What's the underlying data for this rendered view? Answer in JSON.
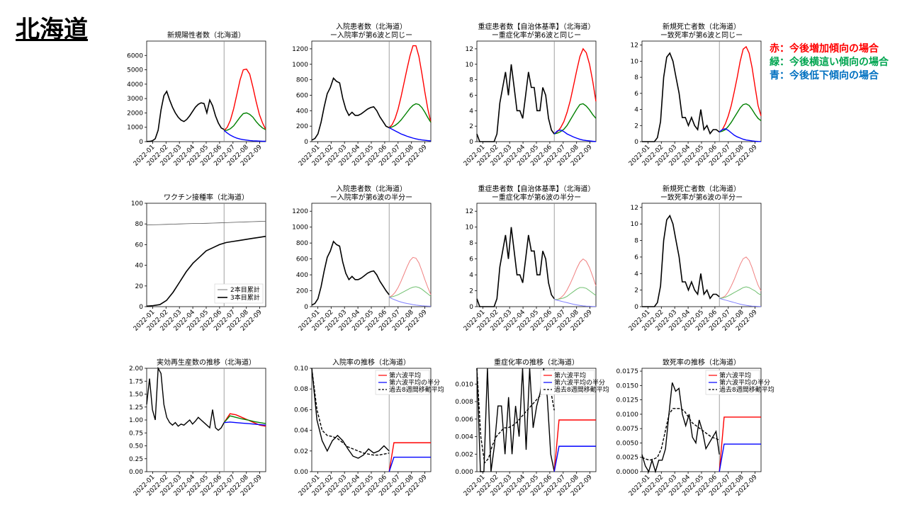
{
  "page_title": "北海道",
  "legend": [
    {
      "text": "赤：今後増加傾向の場合",
      "color": "#ff0000"
    },
    {
      "text": "緑：今後横這い傾向の場合",
      "color": "#00a550"
    },
    {
      "text": "青：今後低下傾向の場合",
      "color": "#0070c0"
    }
  ],
  "colors": {
    "actual": "#000000",
    "up": "#ff0000",
    "flat": "#008000",
    "down": "#0000ff",
    "up_light": "#f08080",
    "flat_light": "#70c070",
    "down_light": "#8080ff"
  },
  "x_ticks": [
    "2022-01",
    "2022-02",
    "2022-03",
    "2022-04",
    "2022-05",
    "2022-06",
    "2022-07",
    "2022-08",
    "2022-09"
  ],
  "chart_data": [
    {
      "id": "c1",
      "type": "line",
      "title": [
        "新規陽性者数（北海道）"
      ],
      "ylim": [
        0,
        7000
      ],
      "yticks": [
        0,
        1000,
        2000,
        3000,
        4000,
        5000,
        6000
      ],
      "actual": [
        10,
        20,
        60,
        200,
        800,
        2200,
        3200,
        3500,
        2900,
        2400,
        2000,
        1700,
        1500,
        1400,
        1550,
        1800,
        2100,
        2400,
        2600,
        2700,
        2650,
        2000,
        2900,
        2500,
        1800,
        1300,
        950,
        850
      ],
      "up": [
        780,
        1000,
        1500,
        2300,
        3300,
        4300,
        5000,
        5050,
        4700,
        3800,
        2800,
        1900,
        1300,
        850
      ],
      "flat": [
        780,
        800,
        900,
        1100,
        1400,
        1700,
        1950,
        2000,
        1900,
        1700,
        1400,
        1150,
        950,
        830
      ],
      "down": [
        780,
        600,
        450,
        330,
        240,
        180,
        140,
        110,
        80,
        60,
        50,
        40,
        30,
        25
      ]
    },
    {
      "id": "c2",
      "type": "line",
      "title": [
        "入院患者数（北海道）",
        "ー入院率が第6波と同じー"
      ],
      "ylim": [
        0,
        1300
      ],
      "yticks": [
        0,
        200,
        400,
        600,
        800,
        1000,
        1200
      ],
      "actual": [
        20,
        40,
        100,
        250,
        450,
        620,
        700,
        820,
        780,
        760,
        560,
        420,
        340,
        380,
        340,
        340,
        360,
        390,
        420,
        440,
        450,
        400,
        320,
        260,
        200,
        180
      ],
      "up": [
        180,
        220,
        300,
        420,
        580,
        760,
        940,
        1110,
        1240,
        1240,
        1100,
        880,
        640,
        420,
        250
      ],
      "flat": [
        180,
        190,
        210,
        240,
        280,
        330,
        380,
        430,
        470,
        490,
        480,
        440,
        380,
        310,
        250
      ],
      "down": [
        180,
        160,
        140,
        120,
        100,
        85,
        70,
        58,
        46,
        36,
        28,
        22,
        17,
        13,
        10
      ]
    },
    {
      "id": "c3",
      "type": "line",
      "title": [
        "重症患者数【自治体基準】（北海道）",
        "ー重症化率が第6波と同じー"
      ],
      "ylim": [
        0,
        13
      ],
      "yticks": [
        0,
        2,
        4,
        6,
        8,
        10,
        12
      ],
      "actual": [
        1,
        0,
        0,
        0,
        0,
        0,
        0,
        1,
        5,
        7,
        9,
        6,
        10,
        7,
        4,
        4,
        3,
        6,
        9,
        7,
        7,
        4,
        4,
        7,
        6,
        3,
        1.5,
        1
      ],
      "up": [
        1,
        1.3,
        1.8,
        2.6,
        3.8,
        5.3,
        7.2,
        9.2,
        11,
        12,
        11.5,
        10,
        7.8,
        5.2
      ],
      "flat": [
        1,
        1.1,
        1.3,
        1.6,
        2.1,
        2.8,
        3.5,
        4.2,
        4.8,
        4.9,
        4.6,
        4.1,
        3.5,
        3.0
      ],
      "down": [
        1,
        1.4,
        1.5,
        1.3,
        1.0,
        0.8,
        0.6,
        0.45,
        0.3,
        0.2,
        0.15,
        0.1,
        0.05,
        0.02
      ]
    },
    {
      "id": "c4",
      "type": "line",
      "title": [
        "新規死亡者数（北海道）",
        "ー致死率が第6波と同じー"
      ],
      "ylim": [
        0,
        12.5
      ],
      "yticks": [
        0,
        2,
        4,
        6,
        8,
        10,
        12
      ],
      "actual": [
        0,
        0,
        0,
        0,
        0,
        0.5,
        2.5,
        8,
        10.5,
        11,
        10,
        8,
        6,
        3,
        3,
        2,
        3,
        2,
        1.5,
        4,
        1.5,
        2,
        1,
        1.5,
        1.5,
        1.2
      ],
      "up": [
        1.2,
        1.5,
        2.2,
        3.2,
        4.5,
        6.2,
        8,
        10,
        11.5,
        11.8,
        11,
        9.2,
        6.8,
        4.5,
        3.2
      ],
      "flat": [
        1.2,
        1.3,
        1.5,
        1.9,
        2.4,
        3.0,
        3.6,
        4.2,
        4.6,
        4.7,
        4.5,
        4.0,
        3.4,
        2.9,
        2.6
      ],
      "down": [
        1.2,
        1.5,
        1.6,
        1.4,
        1.1,
        0.8,
        0.6,
        0.45,
        0.3,
        0.2,
        0.15,
        0.1,
        0.05,
        0.03,
        0.02
      ]
    },
    {
      "id": "c5",
      "type": "vaccine",
      "title": [
        "ワクチン接種率（北海道）"
      ],
      "ylim": [
        0,
        100
      ],
      "yticks": [
        0,
        20,
        40,
        60,
        80,
        100
      ],
      "series_names": [
        "2本目累計",
        "3本目累計"
      ],
      "dose2": [
        79,
        79.2,
        79.4,
        79.6,
        79.8,
        80,
        80.2,
        80.4,
        80.5,
        80.6,
        80.8,
        81,
        81.2,
        81.5,
        81.8,
        82,
        82.2,
        82.4,
        82.5
      ],
      "dose3": [
        0.5,
        1,
        2,
        6,
        14,
        24,
        34,
        42,
        48,
        54,
        57,
        60,
        62,
        63,
        64,
        65,
        66,
        67,
        68
      ]
    },
    {
      "id": "c6",
      "type": "line",
      "light": true,
      "title": [
        "入院患者数（北海道）",
        "ー入院率が第6波の半分ー"
      ],
      "ylim": [
        0,
        1300
      ],
      "yticks": [
        0,
        200,
        400,
        600,
        800,
        1000,
        1200
      ],
      "actual": [
        20,
        40,
        100,
        250,
        450,
        620,
        700,
        820,
        780,
        760,
        560,
        420,
        340,
        380,
        340,
        340,
        360,
        390,
        420,
        440,
        450,
        400,
        320,
        260,
        200,
        150
      ],
      "up": [
        120,
        140,
        180,
        240,
        320,
        410,
        500,
        580,
        620,
        610,
        550,
        450,
        340,
        240,
        150
      ],
      "flat": [
        120,
        125,
        135,
        150,
        170,
        190,
        210,
        230,
        245,
        250,
        240,
        220,
        190,
        160,
        130
      ],
      "down": [
        120,
        100,
        85,
        70,
        58,
        48,
        40,
        33,
        26,
        20,
        16,
        12,
        9,
        7,
        5
      ]
    },
    {
      "id": "c7",
      "type": "line",
      "light": true,
      "title": [
        "重症患者数【自治体基準】（北海道）",
        "ー重症化率が第6波の半分ー"
      ],
      "ylim": [
        0,
        13
      ],
      "yticks": [
        0,
        2,
        4,
        6,
        8,
        10,
        12
      ],
      "actual": [
        1,
        0,
        0,
        0,
        0,
        0,
        0,
        1,
        5,
        7,
        9,
        6,
        10,
        7,
        4,
        4,
        3,
        6,
        9,
        7,
        7,
        4,
        4,
        7,
        6,
        3,
        1.5,
        1
      ],
      "up": [
        0.9,
        0.9,
        1.1,
        1.5,
        2.1,
        2.9,
        3.8,
        4.8,
        5.6,
        6,
        5.7,
        4.9,
        3.8,
        2.6
      ],
      "flat": [
        0.9,
        0.9,
        1.0,
        1.1,
        1.3,
        1.6,
        1.9,
        2.2,
        2.4,
        2.4,
        2.3,
        2.0,
        1.7,
        1.4
      ],
      "down": [
        0.9,
        0.8,
        0.7,
        0.6,
        0.5,
        0.4,
        0.3,
        0.22,
        0.16,
        0.1,
        0.07,
        0.05,
        0.03,
        0.02
      ]
    },
    {
      "id": "c8",
      "type": "line",
      "light": true,
      "title": [
        "新規死亡者数（北海道）",
        "ー致死率が第6波の半分ー"
      ],
      "ylim": [
        0,
        12.5
      ],
      "yticks": [
        0,
        2,
        4,
        6,
        8,
        10,
        12
      ],
      "actual": [
        0,
        0,
        0,
        0,
        0,
        0.5,
        2.5,
        8,
        10.5,
        11,
        10,
        8,
        6,
        3,
        3,
        2,
        3,
        2,
        1.5,
        4,
        1.5,
        2,
        1,
        1.5,
        1.5,
        1.2
      ],
      "up": [
        1,
        1.1,
        1.3,
        1.8,
        2.5,
        3.3,
        4.2,
        5.1,
        5.8,
        6,
        5.6,
        4.7,
        3.6,
        2.6,
        1.9
      ],
      "flat": [
        1,
        1.05,
        1.15,
        1.3,
        1.5,
        1.7,
        1.9,
        2.1,
        2.3,
        2.4,
        2.3,
        2.1,
        1.9,
        1.6,
        1.4
      ],
      "down": [
        1,
        0.9,
        0.8,
        0.7,
        0.6,
        0.5,
        0.4,
        0.3,
        0.22,
        0.16,
        0.1,
        0.07,
        0.05,
        0.03,
        0.02
      ]
    },
    {
      "id": "c9",
      "type": "rt",
      "title": [
        "実効再生産数の推移（北海道）"
      ],
      "ylim": [
        0,
        2
      ],
      "yticks": [
        "0.00",
        "0.25",
        "0.50",
        "0.75",
        "1.00",
        "1.25",
        "1.50",
        "1.75",
        "2.00"
      ],
      "actual": [
        1.3,
        1.8,
        1.2,
        1.0,
        2.0,
        1.9,
        1.3,
        1.05,
        0.95,
        0.9,
        0.95,
        0.88,
        0.92,
        0.9,
        0.95,
        1.0,
        0.92,
        0.98,
        1.05,
        1.0,
        0.95,
        0.9,
        0.85,
        1.2,
        0.85,
        0.8,
        0.85,
        0.95
      ],
      "up": [
        0.95,
        1.12,
        1.1,
        1.05,
        1.0,
        0.95,
        0.9,
        0.88
      ],
      "flat": [
        0.95,
        1.08,
        1.05,
        1.02,
        1.0,
        0.97,
        0.95,
        0.93
      ],
      "down": [
        0.95,
        0.96,
        0.95,
        0.94,
        0.93,
        0.92,
        0.91,
        0.9
      ]
    },
    {
      "id": "c10",
      "type": "rate",
      "title": [
        "入院率の推移（北海道）"
      ],
      "ylim": [
        0,
        0.1
      ],
      "yticks": [
        "0.00",
        "0.02",
        "0.04",
        "0.06",
        "0.08",
        "0.10"
      ],
      "series_names": [
        "第六波平均",
        "第六波平均の半分",
        "過去8週間移動平均"
      ],
      "actual": [
        0.1,
        0.05,
        0.03,
        0.02,
        0.03,
        0.035,
        0.03,
        0.022,
        0.015,
        0.013,
        0.016,
        0.022,
        0.018,
        0.02,
        0.025,
        0.02
      ],
      "mavg": [
        0.1,
        0.06,
        0.04,
        0.035,
        0.034,
        0.032,
        0.028,
        0.024,
        0.022,
        0.02,
        0.018,
        0.017,
        0.016,
        0.016,
        0.017,
        0.018
      ],
      "up_value": 0.028,
      "down_value": 0.014
    },
    {
      "id": "c11",
      "type": "rate",
      "title": [
        "重症化率の推移（北海道）"
      ],
      "ylim": [
        0,
        0.0118
      ],
      "yticks": [
        "0.000",
        "0.002",
        "0.004",
        "0.006",
        "0.008",
        "0.010"
      ],
      "series_names": [
        "第六波平均",
        "第六波平均の半分",
        "過去8週間移動平均"
      ],
      "actual": [
        0.0118,
        0,
        0,
        0.0118,
        0,
        0.003,
        0.0075,
        0.0075,
        0.002,
        0.0085,
        0.002,
        0.0075,
        0.004,
        0.0118,
        0.0025,
        0.0118,
        0.005,
        0.0075,
        0.009,
        0.0118,
        0.0085,
        0.002,
        0
      ],
      "mavg": [
        0.0118,
        0.004,
        0.001,
        0.0015,
        0.003,
        0.004,
        0.0045,
        0.005,
        0.005,
        0.0052,
        0.0055,
        0.006,
        0.0065,
        0.007,
        0.0075,
        0.008,
        0.0085,
        0.009,
        0.01,
        0.0095,
        0.007
      ],
      "up_value": 0.0059,
      "down_value": 0.0029
    },
    {
      "id": "c12",
      "type": "rate",
      "title": [
        "致死率の推移（北海道）"
      ],
      "ylim": [
        0,
        0.018
      ],
      "yticks": [
        "0.0000",
        "0.0025",
        "0.0050",
        "0.0075",
        "0.0100",
        "0.0125",
        "0.0150",
        "0.0175"
      ],
      "series_names": [
        "第六波平均",
        "第六波平均の半分",
        "過去8週間移動平均"
      ],
      "actual": [
        0.003,
        0.001,
        0,
        0.002,
        0,
        0.002,
        0.002,
        0.004,
        0.01,
        0.0155,
        0.014,
        0.0145,
        0.01,
        0.008,
        0.01,
        0.006,
        0.005,
        0.009,
        0.007,
        0.004,
        0.005,
        0.006,
        0.007,
        0.003
      ],
      "mavg": [
        0.0025,
        0.0022,
        0.002,
        0.0022,
        0.0025,
        0.004,
        0.007,
        0.01,
        0.011,
        0.011,
        0.011,
        0.0105,
        0.0095,
        0.0085,
        0.008,
        0.0075,
        0.007,
        0.0065,
        0.006,
        0.0058,
        0.0055
      ],
      "up_value": 0.0095,
      "down_value": 0.0048
    }
  ]
}
